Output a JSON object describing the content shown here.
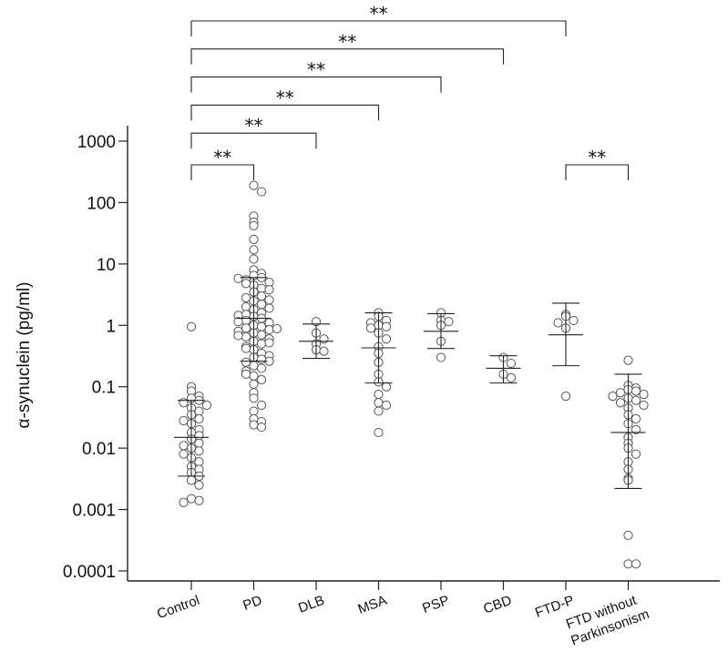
{
  "chart_data": {
    "type": "scatter",
    "title": "",
    "xlabel": "",
    "ylabel": "α-synuclein (pg/ml)",
    "yscale": "log",
    "ylim": [
      0.0001,
      1000
    ],
    "yticks": [
      {
        "value": 1000,
        "label": "1000"
      },
      {
        "value": 100,
        "label": "100"
      },
      {
        "value": 10,
        "label": "10"
      },
      {
        "value": 1,
        "label": "1"
      },
      {
        "value": 0.1,
        "label": "0.1"
      },
      {
        "value": 0.01,
        "label": "0.01"
      },
      {
        "value": 0.001,
        "label": "0.001"
      },
      {
        "value": 0.0001,
        "label": "0.0001"
      }
    ],
    "categories": [
      "Control",
      "PD",
      "DLB",
      "MSA",
      "PSP",
      "CBD",
      "FTD-P",
      "FTD without Parkinsonism"
    ],
    "category_lines": [
      [
        "Control"
      ],
      [
        "PD"
      ],
      [
        "DLB"
      ],
      [
        "MSA"
      ],
      [
        "PSP"
      ],
      [
        "CBD"
      ],
      [
        "FTD-P"
      ],
      [
        "FTD without",
        "Parkinsonism"
      ]
    ],
    "groups": [
      {
        "name": "Control",
        "median": 0.015,
        "q_low": 0.0035,
        "q_high": 0.06,
        "values": [
          0.95,
          0.1,
          0.085,
          0.07,
          0.065,
          0.06,
          0.055,
          0.05,
          0.045,
          0.04,
          0.035,
          0.03,
          0.028,
          0.025,
          0.02,
          0.018,
          0.016,
          0.014,
          0.012,
          0.011,
          0.01,
          0.009,
          0.008,
          0.007,
          0.006,
          0.005,
          0.0045,
          0.004,
          0.0035,
          0.003,
          0.0025,
          0.0015,
          0.0014,
          0.0013
        ]
      },
      {
        "name": "PD",
        "median": 1.3,
        "q_low": 0.26,
        "q_high": 6.0,
        "values": [
          190,
          150,
          60,
          48,
          42,
          25,
          17,
          12,
          8,
          7,
          6.5,
          6,
          5.5,
          5,
          4.5,
          4,
          3.5,
          3,
          2.8,
          2.5,
          2.2,
          2,
          1.8,
          1.6,
          1.5,
          1.4,
          1.3,
          1.2,
          1.1,
          1.0,
          0.95,
          0.9,
          0.85,
          0.8,
          0.75,
          0.7,
          0.65,
          0.6,
          0.55,
          0.5,
          0.45,
          0.4,
          0.35,
          0.3,
          0.28,
          0.25,
          0.22,
          0.2,
          0.18,
          0.15,
          0.13,
          0.11,
          0.08,
          0.065,
          0.05,
          0.04,
          0.03,
          0.027,
          0.024,
          0.022,
          5.8,
          4.8,
          3.8,
          2.6,
          1.9,
          1.45,
          1.15,
          0.88,
          0.68,
          0.52,
          0.42,
          0.32,
          0.26,
          0.16
        ]
      },
      {
        "name": "DLB",
        "median": 0.55,
        "q_low": 0.29,
        "q_high": 1.05,
        "values": [
          1.15,
          0.75,
          0.6,
          0.5,
          0.4,
          0.38
        ]
      },
      {
        "name": "MSA",
        "median": 0.43,
        "q_low": 0.115,
        "q_high": 1.6,
        "values": [
          1.6,
          1.4,
          1.2,
          1.1,
          1.0,
          0.95,
          0.9,
          0.75,
          0.6,
          0.45,
          0.35,
          0.25,
          0.16,
          0.12,
          0.1,
          0.075,
          0.055,
          0.05,
          0.04,
          0.018
        ]
      },
      {
        "name": "PSP",
        "median": 0.8,
        "q_low": 0.42,
        "q_high": 1.55,
        "values": [
          1.6,
          1.2,
          1.15,
          1.0,
          0.55,
          0.3
        ]
      },
      {
        "name": "CBD",
        "median": 0.2,
        "q_low": 0.115,
        "q_high": 0.32,
        "values": [
          0.3,
          0.24,
          0.16,
          0.14
        ]
      },
      {
        "name": "FTD-P",
        "median": 0.7,
        "q_low": 0.22,
        "q_high": 2.3,
        "values": [
          1.5,
          1.4,
          1.2,
          1.1,
          0.9,
          0.07
        ]
      },
      {
        "name": "FTD without Parkinsonism",
        "median": 0.018,
        "q_low": 0.0022,
        "q_high": 0.16,
        "values": [
          0.27,
          0.105,
          0.095,
          0.09,
          0.085,
          0.08,
          0.075,
          0.07,
          0.065,
          0.06,
          0.055,
          0.05,
          0.045,
          0.035,
          0.03,
          0.025,
          0.02,
          0.015,
          0.012,
          0.01,
          0.008,
          0.006,
          0.0045,
          0.0032,
          0.003,
          0.00038,
          0.00013,
          0.00013
        ]
      }
    ],
    "significance": [
      {
        "from": "Control",
        "to": "FTD-P",
        "label": "**"
      },
      {
        "from": "Control",
        "to": "CBD",
        "label": "**"
      },
      {
        "from": "Control",
        "to": "PSP",
        "label": "**"
      },
      {
        "from": "Control",
        "to": "MSA",
        "label": "**"
      },
      {
        "from": "Control",
        "to": "DLB",
        "label": "**"
      },
      {
        "from": "Control",
        "to": "PD",
        "label": "**"
      },
      {
        "from": "FTD-P",
        "to": "FTD without Parkinsonism",
        "label": "**"
      }
    ]
  }
}
